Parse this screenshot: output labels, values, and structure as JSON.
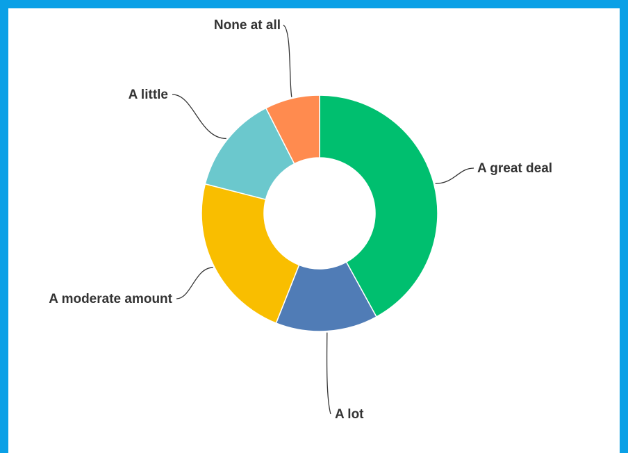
{
  "chart_data": {
    "type": "pie",
    "donut": true,
    "title": "",
    "categories": [
      "A great deal",
      "A lot",
      "A moderate amount",
      "A little",
      "None at all"
    ],
    "values": [
      42,
      14,
      23,
      13.5,
      7.5
    ],
    "colors": [
      "#00bf6f",
      "#507cb6",
      "#f9be00",
      "#6bc8cd",
      "#ff8b4f"
    ]
  }
}
